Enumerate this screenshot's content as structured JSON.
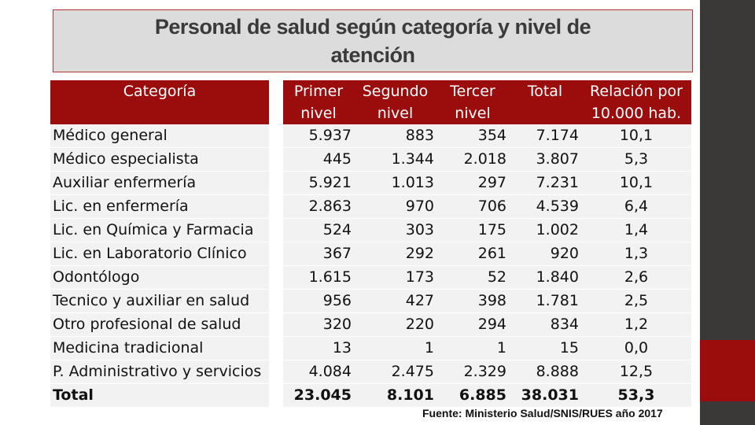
{
  "title": "Personal de salud según categoría y nivel de atención",
  "colors": {
    "header_bg": "#9b0d0d",
    "title_bg": "#dcdcdc",
    "row_bg": "#f2f2f2",
    "side_dark": "#3b3937",
    "side_red": "#9b0d0d"
  },
  "table": {
    "headers": {
      "categoria": "Categoría",
      "primer_1": "Primer",
      "primer_2": "nivel",
      "segundo_1": "Segundo",
      "segundo_2": "nivel",
      "tercer_1": "Tercer",
      "tercer_2": "nivel",
      "total": "Total",
      "relacion_1": "Relación por",
      "relacion_2": "10.000 hab."
    },
    "rows": [
      {
        "cat": "Médico general",
        "p": "5.937",
        "s": "883",
        "t": "354",
        "tot": "7.174",
        "rel": "10,1"
      },
      {
        "cat": "Médico especialista",
        "p": "445",
        "s": "1.344",
        "t": "2.018",
        "tot": "3.807",
        "rel": "5,3"
      },
      {
        "cat": "Auxiliar enfermería",
        "p": "5.921",
        "s": "1.013",
        "t": "297",
        "tot": "7.231",
        "rel": "10,1"
      },
      {
        "cat": "Lic. en enfermería",
        "p": "2.863",
        "s": "970",
        "t": "706",
        "tot": "4.539",
        "rel": "6,4"
      },
      {
        "cat": "Lic. en Química y Farmacia",
        "p": "524",
        "s": "303",
        "t": "175",
        "tot": "1.002",
        "rel": "1,4"
      },
      {
        "cat": "Lic. en Laboratorio Clínico",
        "p": "367",
        "s": "292",
        "t": "261",
        "tot": "920",
        "rel": "1,3"
      },
      {
        "cat": "Odontólogo",
        "p": "1.615",
        "s": "173",
        "t": "52",
        "tot": "1.840",
        "rel": "2,6"
      },
      {
        "cat": "Tecnico y auxiliar en salud",
        "p": "956",
        "s": "427",
        "t": "398",
        "tot": "1.781",
        "rel": "2,5"
      },
      {
        "cat": "Otro profesional de salud",
        "p": "320",
        "s": "220",
        "t": "294",
        "tot": "834",
        "rel": "1,2"
      },
      {
        "cat": "Medicina tradicional",
        "p": "13",
        "s": "1",
        "t": "1",
        "tot": "15",
        "rel": "0,0"
      },
      {
        "cat": "P. Administrativo y servicios",
        "p": "4.084",
        "s": "2.475",
        "t": "2.329",
        "tot": "8.888",
        "rel": "12,5"
      },
      {
        "cat": "Total",
        "p": "23.045",
        "s": "8.101",
        "t": "6.885",
        "tot": "38.031",
        "rel": "53,3"
      }
    ]
  },
  "source": "Fuente: Ministerio Salud/SNIS/RUES año 2017"
}
